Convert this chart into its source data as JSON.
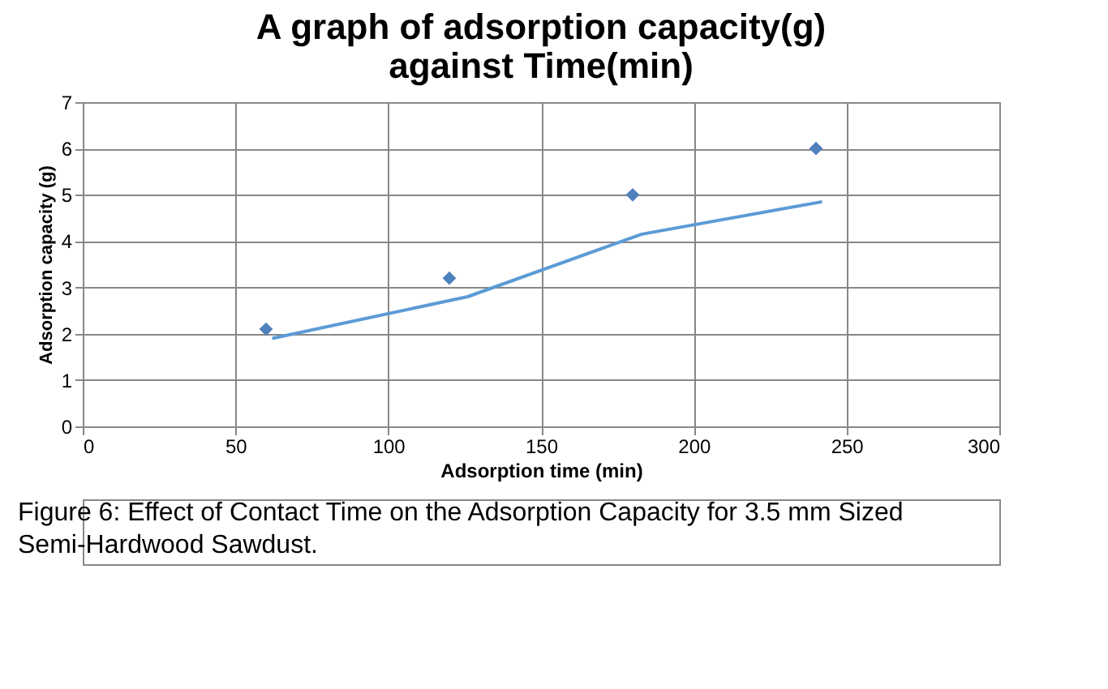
{
  "chart_data": {
    "type": "scatter",
    "title": "A graph of adsorption capacity(g) against Time(min)",
    "xlabel": "Adsorption time (min)",
    "ylabel": "Adsorption capacity (g)",
    "x": [
      60,
      120,
      180,
      240
    ],
    "series": [
      {
        "color": "#4f81bd",
        "values": [
          2.1,
          3.2,
          5.0,
          6.0
        ],
        "marker": "diamond"
      },
      {
        "type": "line",
        "color": "#5b9bd5",
        "x": [
          62,
          126,
          183,
          242
        ],
        "values": [
          1.9,
          2.8,
          4.15,
          4.85
        ],
        "marker": "none"
      }
    ],
    "xlim": [
      0,
      300
    ],
    "xticks": [
      0,
      50,
      100,
      150,
      200,
      250,
      300
    ],
    "ylim": [
      0,
      7
    ],
    "yticks": [
      0,
      1,
      2,
      3,
      4,
      5,
      6,
      7
    ],
    "grid": true,
    "annotations": [
      "Figure 6: Effect of Contact Time on the Adsorption Capacity for 3.5 mm Sized Semi-Hardwood Sawdust."
    ]
  }
}
